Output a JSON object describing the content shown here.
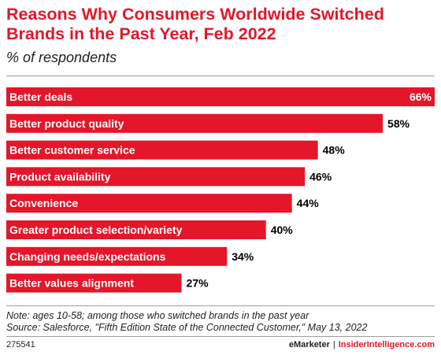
{
  "header": {
    "title": "Reasons Why Consumers Worldwide Switched Brands in the Past Year, Feb 2022",
    "subtitle": "% of respondents"
  },
  "colors": {
    "bar": "#e4162a",
    "accent": "#e4162a"
  },
  "chart_data": {
    "type": "bar",
    "orientation": "horizontal",
    "title": "Reasons Why Consumers Worldwide Switched Brands in the Past Year, Feb 2022",
    "subtitle": "% of respondents",
    "categories": [
      "Better deals",
      "Better product quality",
      "Better customer service",
      "Product availability",
      "Convenience",
      "Greater product selection/variety",
      "Changing needs/expectations",
      "Better values alignment"
    ],
    "values": [
      66,
      58,
      48,
      46,
      44,
      40,
      34,
      27
    ],
    "value_labels": [
      "66%",
      "58%",
      "48%",
      "46%",
      "44%",
      "40%",
      "34%",
      "27%"
    ],
    "xlim": [
      0,
      66
    ],
    "grid": false,
    "legend": "none"
  },
  "footer": {
    "note": "Note: ages 10-58; among those who switched brands in the past year",
    "source": "Source: Salesforce, \"Fifth Edition State of the Connected Customer,\" May 13, 2022",
    "chart_id": "275541",
    "brand_primary": "eMarketer",
    "separator": "|",
    "brand_secondary": "InsiderIntelligence.com"
  }
}
